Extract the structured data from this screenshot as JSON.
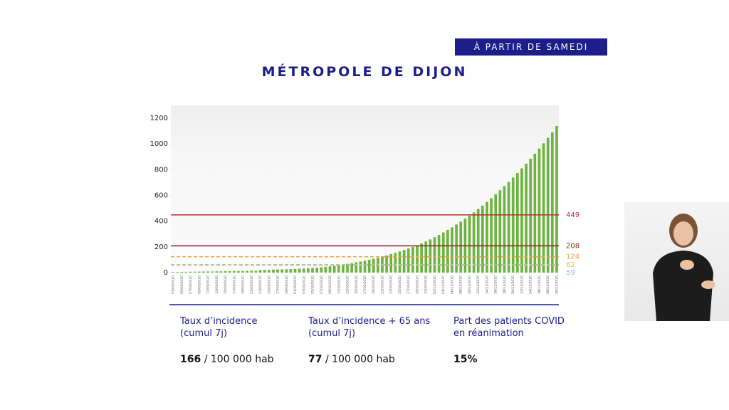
{
  "badge": "À PARTIR DE SAMEDI",
  "chart_data": {
    "type": "bar",
    "title": "MÉTROPOLE DE DIJON",
    "color": "#6db33f",
    "categories": [
      "03/09/2020",
      null,
      "05/09/2020",
      null,
      "07/09/2020",
      null,
      "09/09/2020",
      null,
      "11/09/2020",
      null,
      "13/09/2020",
      null,
      "15/09/2020",
      null,
      "17/09/2020",
      null,
      "19/09/2020",
      null,
      "21/09/2020",
      null,
      "23/09/2020",
      null,
      "25/09/2020",
      null,
      "27/09/2020",
      null,
      "29/09/2020",
      null,
      "01/10/2020",
      null,
      "03/10/2020",
      null,
      "05/10/2020",
      null,
      "07/10/2020",
      null,
      "09/10/2020",
      null,
      "11/10/2020",
      null,
      "13/10/2020",
      null,
      "15/10/2020",
      null,
      "17/10/2020",
      null,
      "19/10/2020",
      null,
      "21/10/2020",
      null,
      "23/10/2020",
      null,
      "25/10/2020",
      null,
      "27/10/2020",
      null,
      "29/10/2020",
      null,
      "31/10/2020",
      null,
      "02/11/2020",
      null,
      "04/11/2020",
      null,
      "06/11/2020",
      null,
      "08/11/2020",
      null,
      "10/11/2020",
      null,
      "12/11/2020",
      null,
      "14/11/2020",
      null,
      "16/11/2020",
      null,
      "18/11/2020",
      null,
      "20/11/2020",
      null,
      "22/11/2020",
      null,
      "24/11/2020",
      null,
      "26/11/2020",
      null,
      "28/11/2020",
      null,
      "30/11/2020"
    ],
    "values": [
      5,
      5,
      6,
      6,
      7,
      7,
      8,
      8,
      9,
      9,
      10,
      10,
      11,
      11,
      12,
      12,
      13,
      13,
      14,
      14,
      20,
      21,
      22,
      23,
      24,
      25,
      26,
      27,
      28,
      30,
      32,
      34,
      36,
      38,
      41,
      45,
      49,
      53,
      58,
      63,
      68,
      74,
      80,
      86,
      93,
      100,
      108,
      116,
      125,
      134,
      144,
      154,
      165,
      176,
      188,
      200,
      213,
      227,
      242,
      258,
      275,
      293,
      312,
      332,
      352,
      374,
      396,
      419,
      443,
      468,
      494,
      521,
      549,
      578,
      608,
      640,
      672,
      705,
      739,
      774,
      810,
      847,
      885,
      924,
      964,
      1005,
      1047,
      1090,
      1140
    ],
    "ylim": [
      0,
      1300
    ],
    "yticks": [
      0,
      200,
      400,
      600,
      800,
      1000,
      1200
    ],
    "thresholds": [
      {
        "value": 449,
        "color": "#c0302a",
        "dashed": false
      },
      {
        "value": 208,
        "color": "#8e1f1f",
        "dashed": false
      },
      {
        "value": 124,
        "color": "#f0a040",
        "dashed": true
      },
      {
        "value": 62,
        "color": "#f2c230",
        "dashed": true
      },
      {
        "value": 59,
        "color": "#9bbbd8",
        "dashed": true
      }
    ]
  },
  "stats": [
    {
      "label": [
        "Taux d’incidence",
        "(cumul 7j)"
      ],
      "value": "166",
      "unit": "/ 100 000 hab"
    },
    {
      "label": [
        "Taux d’incidence + 65 ans",
        "(cumul 7j)"
      ],
      "value": "77",
      "unit": "/ 100 000 hab"
    },
    {
      "label": [
        "Part des patients COVID",
        "en réanimation"
      ],
      "value": "15%"
    }
  ]
}
